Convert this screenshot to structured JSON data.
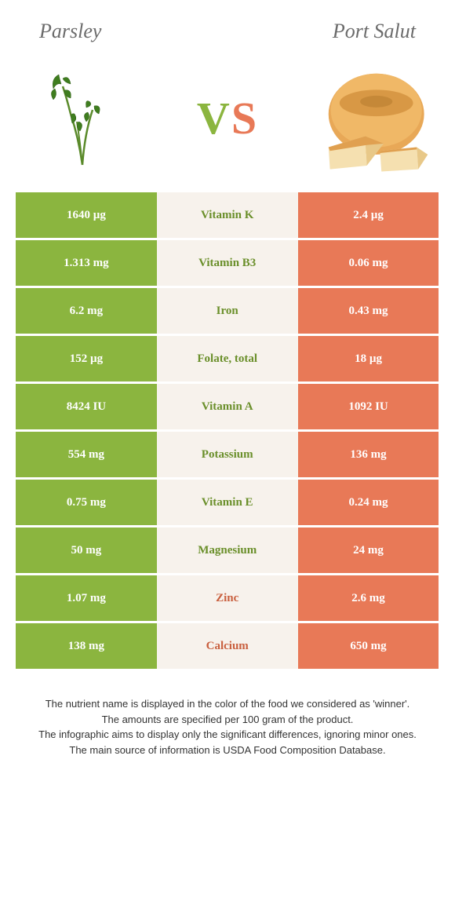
{
  "header": {
    "left_title": "Parsley",
    "right_title": "Port Salut",
    "vs_v": "V",
    "vs_s": "S"
  },
  "colors": {
    "left_bg": "#8bb53f",
    "right_bg": "#e87957",
    "mid_bg": "#f7f2ec",
    "nutrient_left_win": "#6a8f2a",
    "nutrient_right_win": "#c9603f",
    "title_color": "#6b6b6b",
    "footnote_color": "#333333"
  },
  "nutrients": [
    {
      "left": "1640 µg",
      "name": "Vitamin K",
      "right": "2.4 µg",
      "winner": "left"
    },
    {
      "left": "1.313 mg",
      "name": "Vitamin B3",
      "right": "0.06 mg",
      "winner": "left"
    },
    {
      "left": "6.2 mg",
      "name": "Iron",
      "right": "0.43 mg",
      "winner": "left"
    },
    {
      "left": "152 µg",
      "name": "Folate, total",
      "right": "18 µg",
      "winner": "left"
    },
    {
      "left": "8424 IU",
      "name": "Vitamin A",
      "right": "1092 IU",
      "winner": "left"
    },
    {
      "left": "554 mg",
      "name": "Potassium",
      "right": "136 mg",
      "winner": "left"
    },
    {
      "left": "0.75 mg",
      "name": "Vitamin E",
      "right": "0.24 mg",
      "winner": "left"
    },
    {
      "left": "50 mg",
      "name": "Magnesium",
      "right": "24 mg",
      "winner": "left"
    },
    {
      "left": "1.07 mg",
      "name": "Zinc",
      "right": "2.6 mg",
      "winner": "right"
    },
    {
      "left": "138 mg",
      "name": "Calcium",
      "right": "650 mg",
      "winner": "right"
    }
  ],
  "footnotes": {
    "line1": "The nutrient name is displayed in the color of the food we considered as 'winner'.",
    "line2": "The amounts are specified per 100 gram of the product.",
    "line3": "The infographic aims to display only the significant differences, ignoring minor ones.",
    "line4": "The main source of information is USDA Food Composition Database."
  }
}
